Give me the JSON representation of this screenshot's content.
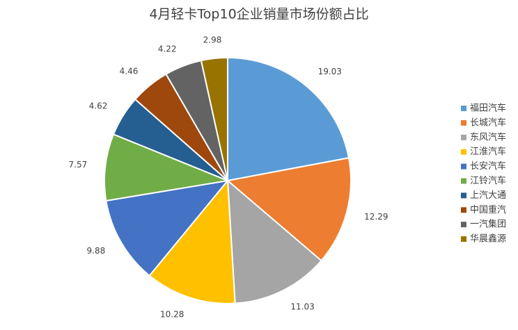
{
  "chart_data": {
    "type": "pie",
    "title": "4月轻卡Top10企业销量市场份额占比",
    "categories": [
      "福田汽车",
      "长城汽车",
      "东风汽车",
      "江淮汽车",
      "长安汽车",
      "江铃汽车",
      "上汽大通",
      "中国重汽",
      "一汽集团",
      "华晨鑫源"
    ],
    "values": [
      19.03,
      12.29,
      11.03,
      10.28,
      9.88,
      7.57,
      4.62,
      4.46,
      4.22,
      2.98
    ],
    "colors": [
      "#5b9bd5",
      "#ed7d31",
      "#a5a5a5",
      "#ffc000",
      "#4472c4",
      "#70ad47",
      "#255e91",
      "#9e480e",
      "#636363",
      "#997300"
    ],
    "legend": "right"
  }
}
